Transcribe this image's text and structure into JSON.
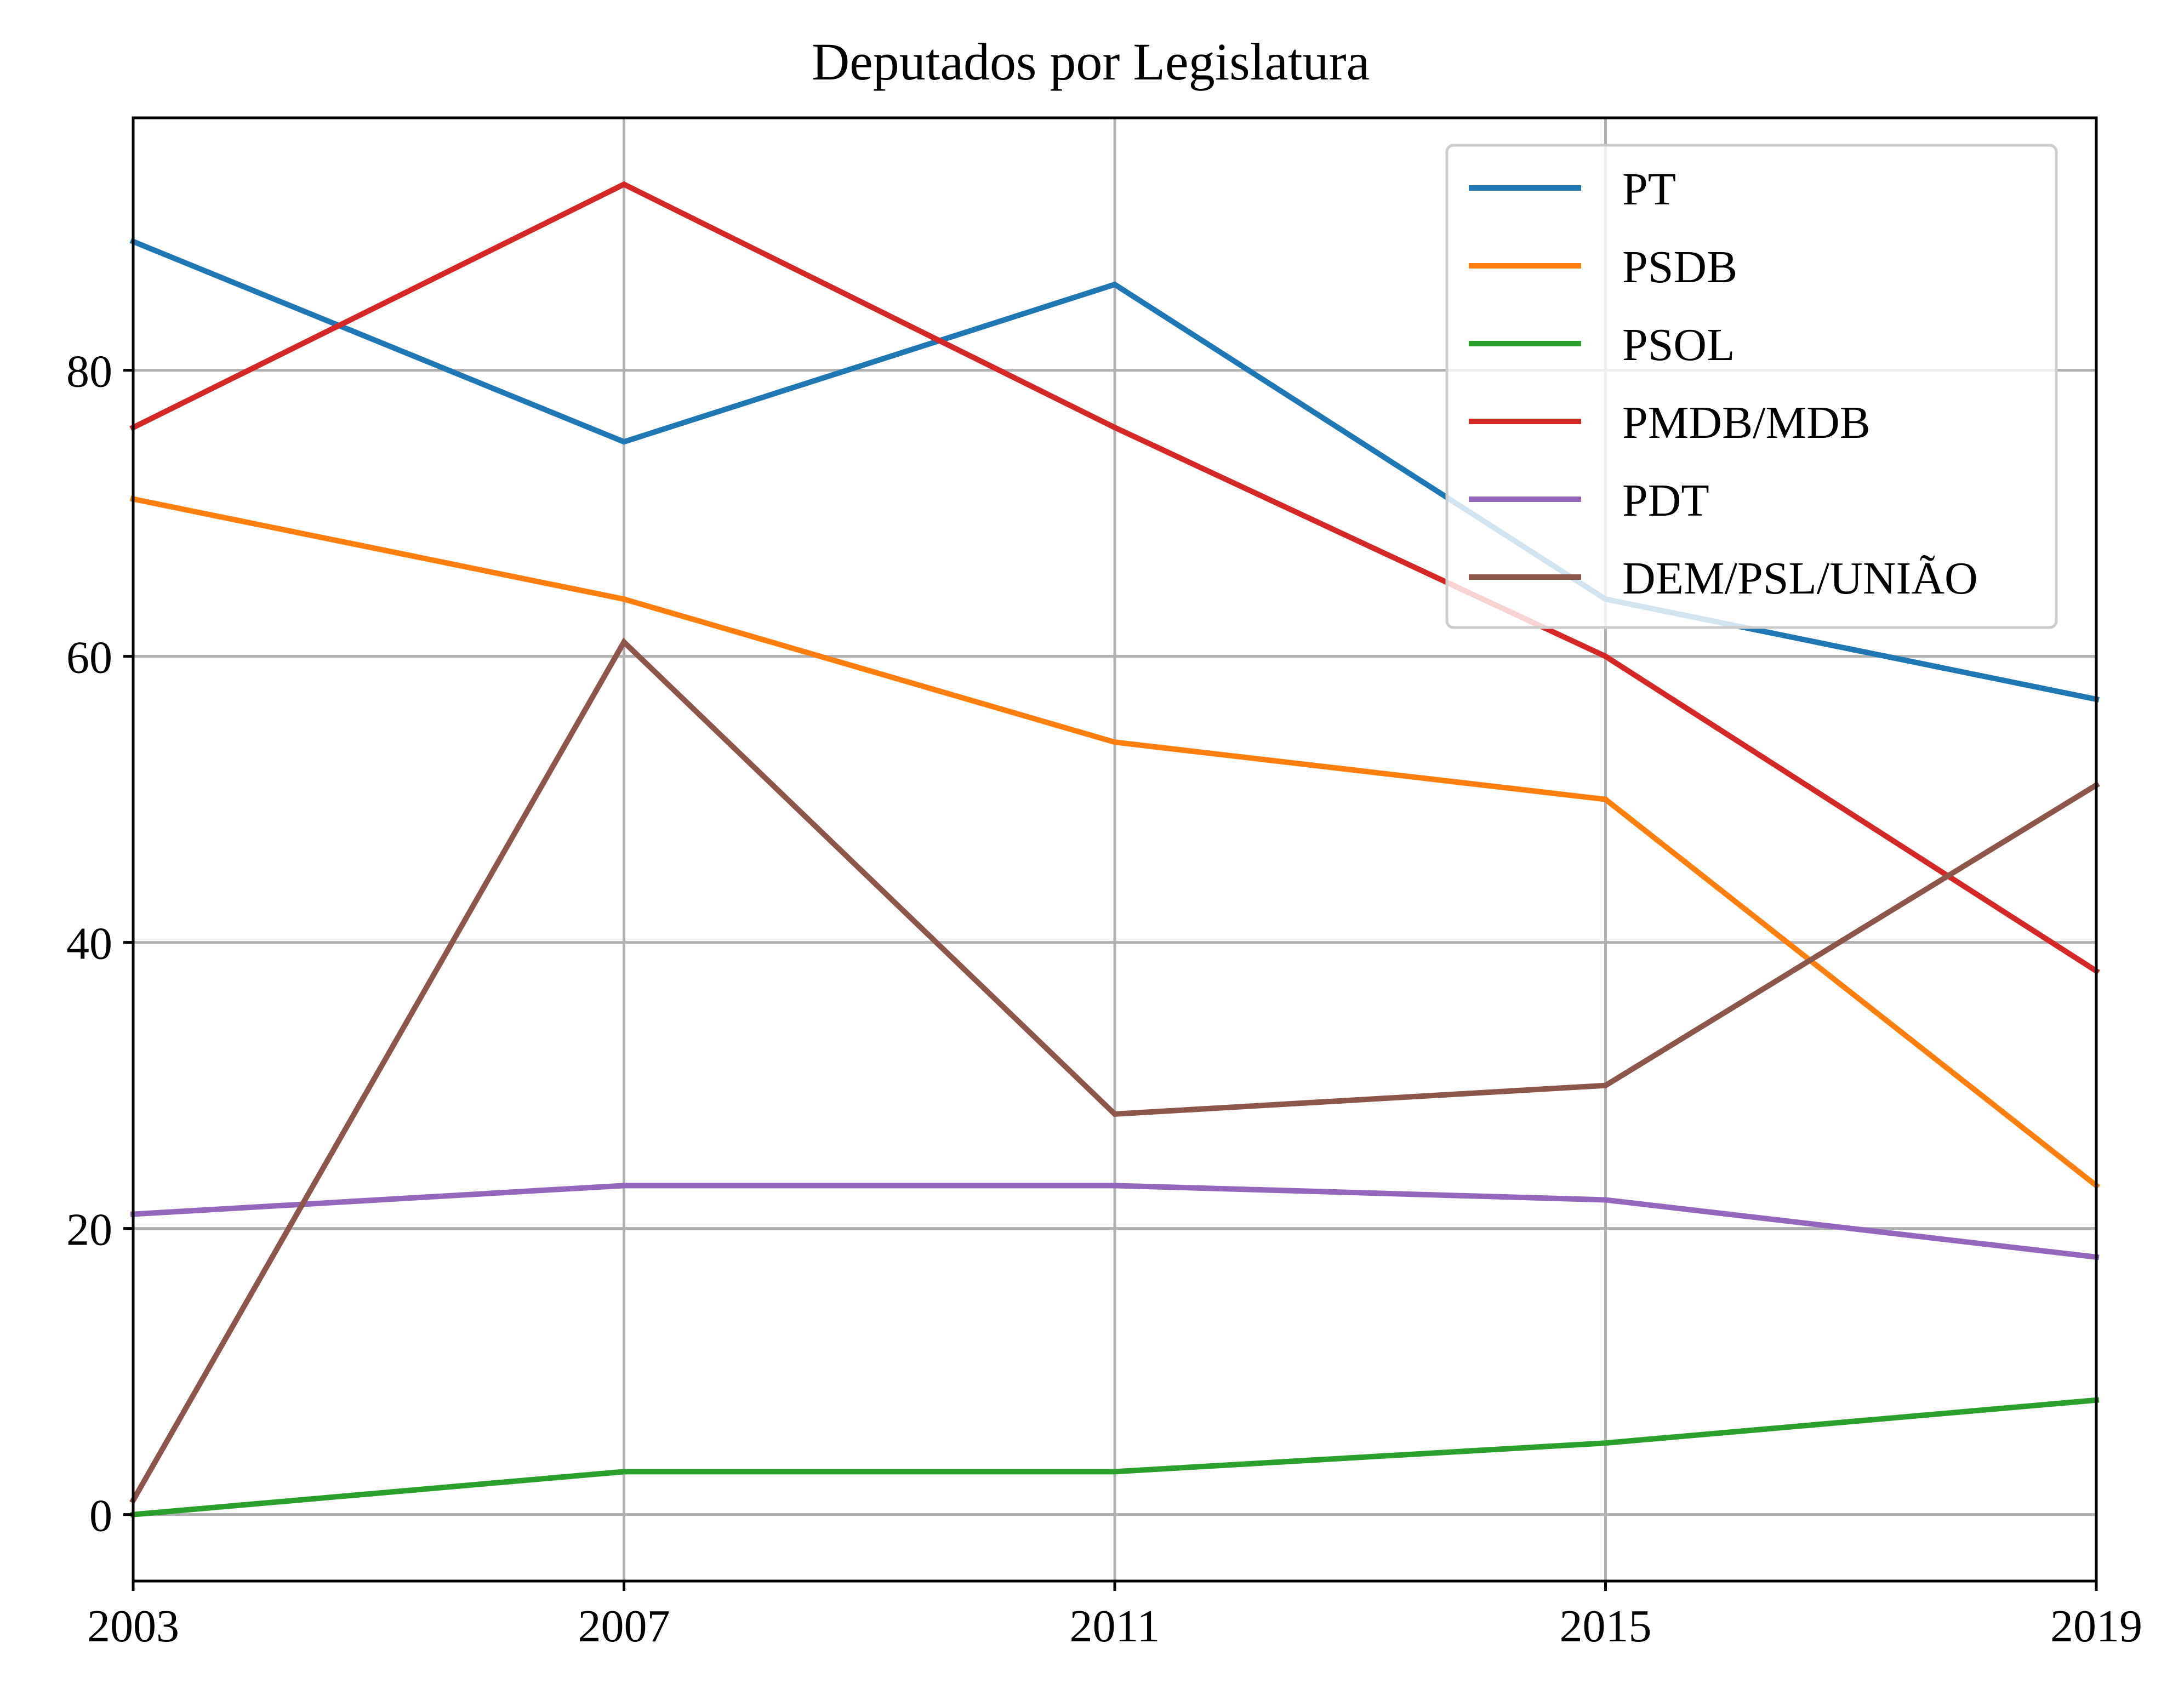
{
  "chart_data": {
    "type": "line",
    "title": "Deputados por Legislatura",
    "xlabel": "",
    "ylabel": "",
    "x": [
      2003,
      2007,
      2011,
      2015,
      2019
    ],
    "x_ticks": [
      "2003",
      "2007",
      "2011",
      "2015",
      "2019"
    ],
    "y_ticks": [
      "0",
      "20",
      "40",
      "60",
      "80"
    ],
    "xlim": [
      2003,
      2019
    ],
    "ylim": [
      -4.65,
      97.65
    ],
    "grid": true,
    "legend_position": "top-right",
    "series": [
      {
        "name": "PT",
        "color": "#1f77b4",
        "values": [
          89,
          75,
          86,
          64,
          57
        ]
      },
      {
        "name": "PSDB",
        "color": "#ff7f0e",
        "values": [
          71,
          64,
          54,
          50,
          23
        ]
      },
      {
        "name": "PSOL",
        "color": "#2ca02c",
        "values": [
          0,
          3,
          3,
          5,
          8
        ]
      },
      {
        "name": "PMDB/MDB",
        "color": "#d62728",
        "values": [
          76,
          93,
          76,
          60,
          38
        ]
      },
      {
        "name": "PDT",
        "color": "#9467bd",
        "values": [
          21,
          23,
          23,
          22,
          18
        ]
      },
      {
        "name": "DEM/PSL/UNIÃO",
        "color": "#8c564b",
        "values": [
          1,
          61,
          28,
          30,
          51
        ]
      }
    ]
  }
}
